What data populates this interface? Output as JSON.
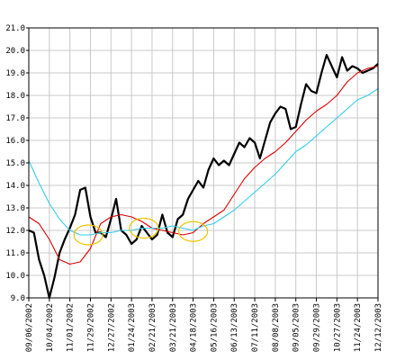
{
  "chart_data": {
    "type": "line",
    "title": "",
    "xlabel": "",
    "ylabel": "",
    "ylim": [
      9.0,
      21.0
    ],
    "grid": true,
    "legend": "none",
    "y_ticks": [
      "9.0",
      "10.0",
      "11.0",
      "12.0",
      "13.0",
      "14.0",
      "15.0",
      "16.0",
      "17.0",
      "18.0",
      "19.0",
      "20.0",
      "21.0"
    ],
    "x_ticks": [
      "09/06/2002",
      "10/04/2002",
      "11/01/2002",
      "11/29/2002",
      "12/27/2002",
      "01/24/2003",
      "02/21/2003",
      "03/21/2003",
      "04/18/2003",
      "05/16/2003",
      "06/13/2003",
      "07/11/2003",
      "08/08/2003",
      "09/05/2003",
      "09/29/2003",
      "10/27/2003",
      "11/24/2003",
      "12/12/2003"
    ],
    "colors": {
      "price": "#000000",
      "ma_short": "#dd0000",
      "ma_long": "#33ccee",
      "highlight": "#f2c200",
      "grid": "#c8c8c8"
    },
    "series": [
      {
        "color": "#000000",
        "x": [
          0,
          0.25,
          0.5,
          0.75,
          1,
          1.25,
          1.5,
          1.75,
          2,
          2.25,
          2.5,
          2.75,
          3,
          3.25,
          3.5,
          3.75,
          4,
          4.25,
          4.5,
          4.75,
          5,
          5.25,
          5.5,
          5.75,
          6,
          6.25,
          6.5,
          6.75,
          7,
          7.25,
          7.5,
          7.75,
          8,
          8.25,
          8.5,
          8.75,
          9,
          9.25,
          9.5,
          9.75,
          10,
          10.25,
          10.5,
          10.75,
          11,
          11.25,
          11.5,
          11.75,
          12,
          12.25,
          12.5,
          12.75,
          13,
          13.25,
          13.5,
          13.75,
          14,
          14.25,
          14.5,
          14.75,
          15,
          15.25,
          15.5,
          15.75,
          16,
          16.25,
          16.5,
          16.75,
          17
        ],
        "values": [
          12.0,
          11.9,
          10.7,
          10.0,
          9.0,
          9.9,
          11.0,
          11.6,
          12.1,
          12.7,
          13.8,
          13.9,
          12.6,
          11.9,
          11.9,
          11.7,
          12.5,
          13.4,
          12.0,
          11.8,
          11.4,
          11.6,
          12.2,
          11.9,
          11.6,
          11.8,
          12.7,
          11.9,
          11.7,
          12.5,
          12.7,
          13.4,
          13.8,
          14.2,
          13.9,
          14.7,
          15.2,
          14.9,
          15.1,
          14.9,
          15.4,
          15.9,
          15.7,
          16.1,
          15.9,
          15.2,
          16.0,
          16.8,
          17.2,
          17.5,
          17.4,
          16.5,
          16.6,
          17.6,
          18.5,
          18.2,
          18.1,
          19.0,
          19.8,
          19.3,
          18.8,
          19.7,
          19.1,
          19.3,
          19.2,
          19.0,
          19.1,
          19.2,
          19.4
        ]
      },
      {
        "color": "#dd0000",
        "x": [
          0,
          0.5,
          1,
          1.5,
          2,
          2.5,
          3,
          3.5,
          4,
          4.5,
          5,
          5.5,
          6,
          6.5,
          7,
          7.5,
          8,
          8.5,
          9,
          9.5,
          10,
          10.5,
          11,
          11.5,
          12,
          12.5,
          13,
          13.5,
          14,
          14.5,
          15,
          15.5,
          16,
          16.5,
          17
        ],
        "values": [
          12.6,
          12.3,
          11.6,
          10.7,
          10.5,
          10.6,
          11.2,
          12.3,
          12.6,
          12.7,
          12.6,
          12.4,
          12.1,
          12.0,
          11.9,
          11.8,
          11.9,
          12.3,
          12.6,
          12.9,
          13.6,
          14.3,
          14.8,
          15.2,
          15.5,
          15.9,
          16.4,
          16.9,
          17.3,
          17.6,
          18.0,
          18.6,
          19.0,
          19.2,
          19.3
        ]
      },
      {
        "color": "#33ccee",
        "x": [
          0,
          0.5,
          1,
          1.5,
          2,
          2.5,
          3,
          3.5,
          4,
          4.5,
          5,
          5.5,
          6,
          6.5,
          7,
          7.5,
          8,
          8.5,
          9,
          9.5,
          10,
          10.5,
          11,
          11.5,
          12,
          12.5,
          13,
          13.5,
          14,
          14.5,
          15,
          15.5,
          16,
          16.5,
          17
        ],
        "values": [
          15.1,
          14.1,
          13.2,
          12.5,
          12.0,
          11.8,
          11.8,
          11.9,
          11.9,
          12.0,
          12.0,
          12.1,
          12.1,
          12.1,
          12.2,
          12.1,
          12.0,
          12.2,
          12.3,
          12.6,
          12.9,
          13.3,
          13.7,
          14.1,
          14.5,
          15.0,
          15.5,
          15.8,
          16.2,
          16.6,
          17.0,
          17.4,
          17.8,
          18.0,
          18.3
        ]
      }
    ],
    "annotations": [
      {
        "shape": "ellipse",
        "x": 2.9,
        "y": 11.8
      },
      {
        "shape": "ellipse",
        "x": 5.6,
        "y": 12.1
      },
      {
        "shape": "ellipse",
        "x": 8.0,
        "y": 11.95
      }
    ]
  }
}
